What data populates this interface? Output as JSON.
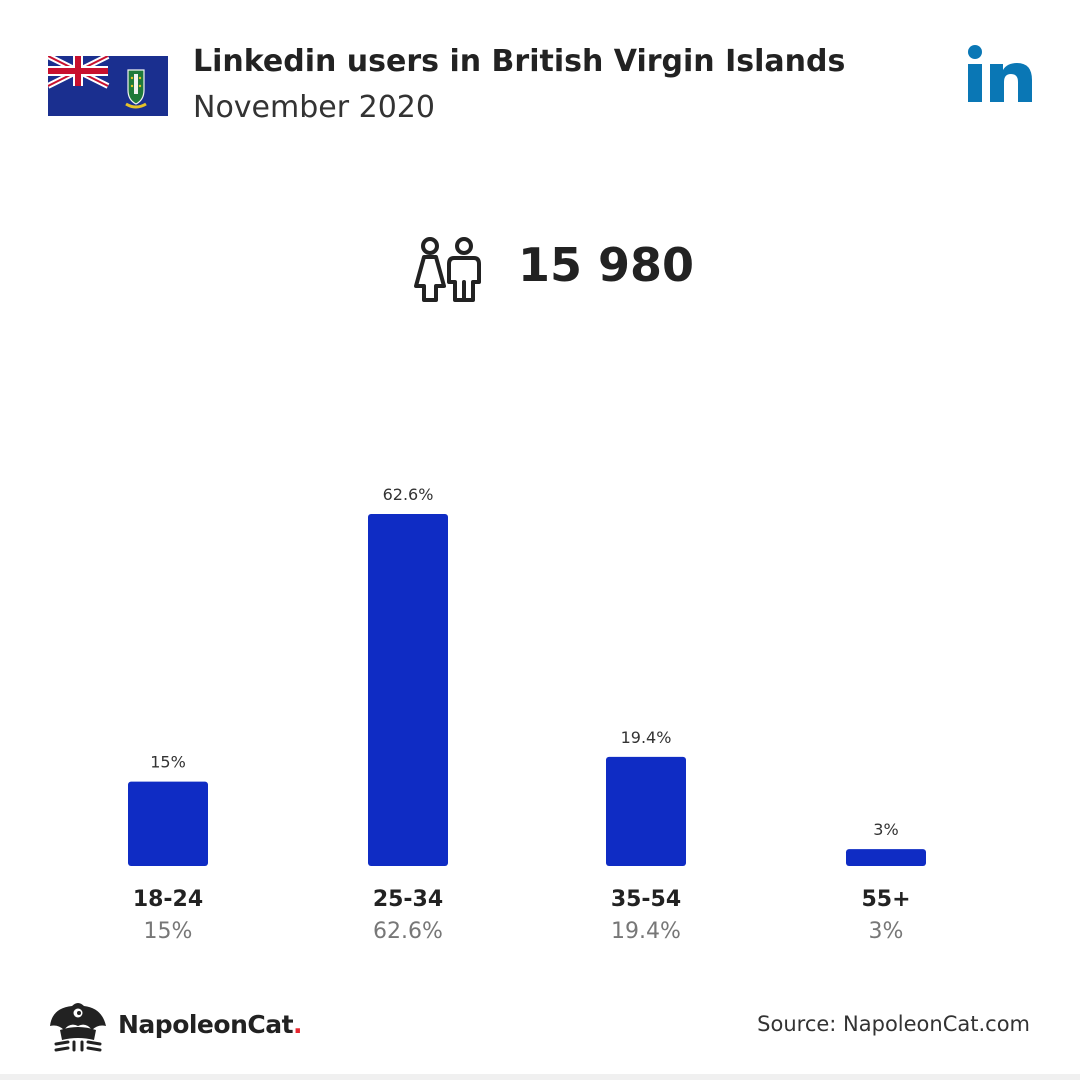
{
  "header": {
    "title": "Linkedin users in British Virgin Islands",
    "subtitle": "November 2020"
  },
  "summary": {
    "total_users": "15 980"
  },
  "chart_data": {
    "type": "bar",
    "categories": [
      "18-24",
      "25-34",
      "35-54",
      "55+"
    ],
    "values": [
      15,
      62.6,
      19.4,
      3
    ],
    "value_labels": [
      "15%",
      "62.6%",
      "19.4%",
      "3%"
    ],
    "ylim": [
      0,
      62.6
    ],
    "grid": false,
    "legend": "none"
  },
  "footer": {
    "brand_name": "NapoleonCat",
    "brand_dot": ".",
    "source": "Source: NapoleonCat.com"
  },
  "colors": {
    "bar": "#0f2cc4",
    "linkedin": "#0a77b5",
    "brand_dot": "#e8262f",
    "flag_blue": "#1a2f8f"
  },
  "icons": {
    "flag": "british-virgin-islands-flag-icon",
    "platform": "linkedin-logo-icon",
    "users": "users-icon",
    "brand": "napoleoncat-logo-icon"
  }
}
